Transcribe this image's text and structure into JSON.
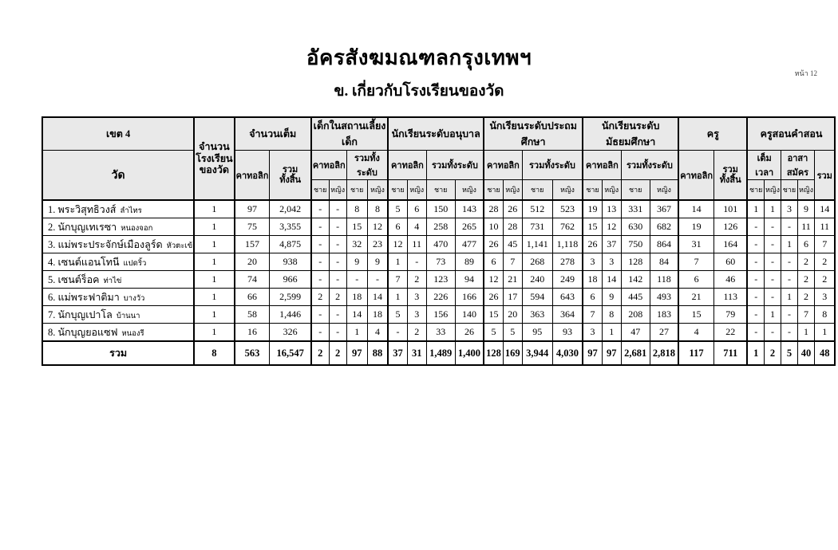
{
  "page": {
    "number_label": "หน้า 12"
  },
  "header": {
    "title": "อัครสังฆมณฑลกรุงเทพฯ",
    "subtitle": "ข. เกี่ยวกับโรงเรียนของวัด"
  },
  "table": {
    "zone": "เขต 4",
    "temple_col": "วัด",
    "school_count_col": "จำนวน\nโรงเรียน\nของวัด",
    "group_full": "จำนวนเต็ม",
    "group_nursery": "เด็กในสถานเลี้ยงเด็ก",
    "group_kindergarten": "นักเรียนระดับอนุบาล",
    "group_primary": "นักเรียนระดับประถมศึกษา",
    "group_secondary": "นักเรียนระดับมัธยมศึกษา",
    "group_teachers": "ครู",
    "group_catechists": "ครูสอนคำสอน",
    "sub_catholic": "คาทอลิก",
    "sub_grand_total": "รวม\nทั้งสิ้น",
    "sub_level_total": "รวมทั้งระดับ",
    "sub_male": "ชาย",
    "sub_female": "หญิง",
    "sub_full_time": "เต็มเวลา",
    "sub_volunteer": "อาสาสมัคร",
    "sub_total": "รวม",
    "rows": [
      {
        "name": "1. พระวิสุทธิวงส์",
        "place": "ลำไทร",
        "cells": [
          "1",
          "97",
          "2,042",
          "-",
          "-",
          "8",
          "8",
          "5",
          "6",
          "150",
          "143",
          "28",
          "26",
          "512",
          "523",
          "19",
          "13",
          "331",
          "367",
          "14",
          "101",
          "1",
          "1",
          "3",
          "9",
          "14"
        ]
      },
      {
        "name": "2. นักบุญเทเรซา",
        "place": "หนองจอก",
        "cells": [
          "1",
          "75",
          "3,355",
          "-",
          "-",
          "15",
          "12",
          "6",
          "4",
          "258",
          "265",
          "10",
          "28",
          "731",
          "762",
          "15",
          "12",
          "630",
          "682",
          "19",
          "126",
          "-",
          "-",
          "-",
          "11",
          "11"
        ]
      },
      {
        "name": "3. แม่พระประจักษ์เมืองลูร์ด",
        "place": "หัวตะเข้",
        "cells": [
          "1",
          "157",
          "4,875",
          "-",
          "-",
          "32",
          "23",
          "12",
          "11",
          "470",
          "477",
          "26",
          "45",
          "1,141",
          "1,118",
          "26",
          "37",
          "750",
          "864",
          "31",
          "164",
          "-",
          "-",
          "1",
          "6",
          "7"
        ]
      },
      {
        "name": "4. เซนต์แอนโทนี",
        "place": "แปดริ้ว",
        "cells": [
          "1",
          "20",
          "938",
          "-",
          "-",
          "9",
          "9",
          "1",
          "-",
          "73",
          "89",
          "6",
          "7",
          "268",
          "278",
          "3",
          "3",
          "128",
          "84",
          "7",
          "60",
          "-",
          "-",
          "-",
          "2",
          "2"
        ]
      },
      {
        "name": "5. เซนต์ร็อค",
        "place": "ท่าไข่",
        "cells": [
          "1",
          "74",
          "966",
          "-",
          "-",
          "-",
          "-",
          "7",
          "2",
          "123",
          "94",
          "12",
          "21",
          "240",
          "249",
          "18",
          "14",
          "142",
          "118",
          "6",
          "46",
          "-",
          "-",
          "-",
          "2",
          "2"
        ]
      },
      {
        "name": "6. แม่พระฟาติมา",
        "place": "บางวัว",
        "cells": [
          "1",
          "66",
          "2,599",
          "2",
          "2",
          "18",
          "14",
          "1",
          "3",
          "226",
          "166",
          "26",
          "17",
          "594",
          "643",
          "6",
          "9",
          "445",
          "493",
          "21",
          "113",
          "-",
          "-",
          "1",
          "2",
          "3"
        ]
      },
      {
        "name": "7. นักบุญเปาโล",
        "place": "บ้านนา",
        "cells": [
          "1",
          "58",
          "1,446",
          "-",
          "-",
          "14",
          "18",
          "5",
          "3",
          "156",
          "140",
          "15",
          "20",
          "363",
          "364",
          "7",
          "8",
          "208",
          "183",
          "15",
          "79",
          "-",
          "1",
          "-",
          "7",
          "8"
        ]
      },
      {
        "name": "8. นักบุญยอแซฟ",
        "place": "หนองรี",
        "cells": [
          "1",
          "16",
          "326",
          "-",
          "-",
          "1",
          "4",
          "-",
          "2",
          "33",
          "26",
          "5",
          "5",
          "95",
          "93",
          "3",
          "1",
          "47",
          "27",
          "4",
          "22",
          "-",
          "-",
          "-",
          "1",
          "1"
        ]
      }
    ],
    "total": {
      "label": "รวม",
      "cells": [
        "8",
        "563",
        "16,547",
        "2",
        "2",
        "97",
        "88",
        "37",
        "31",
        "1,489",
        "1,400",
        "128",
        "169",
        "3,944",
        "4,030",
        "97",
        "97",
        "2,681",
        "2,818",
        "117",
        "711",
        "1",
        "2",
        "5",
        "40",
        "48"
      ]
    }
  }
}
